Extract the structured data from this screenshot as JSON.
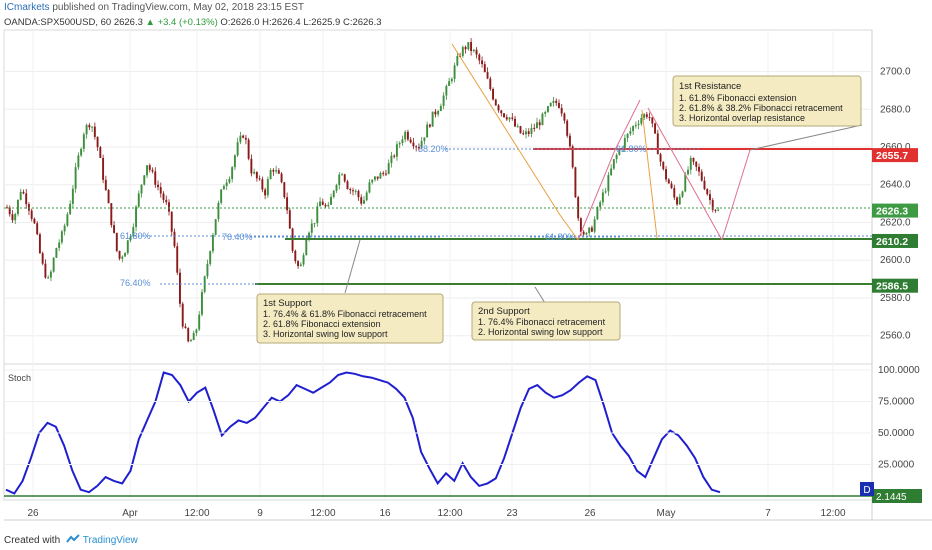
{
  "header": {
    "author": "ICmarkets",
    "published_text": "published on TradingView.com, May 02, 2018 23:15 EST",
    "symbol": "OANDA:SPX500USD, 60",
    "last": "2626.3",
    "change": "▲ +3.4 (+0.13%)",
    "ohlc": "O:2626.0 H:2626.4 L:2625.9 C:2626.3"
  },
  "footer": {
    "created_with": "Created with",
    "brand": "TradingView"
  },
  "indicator": {
    "name": "Stoch",
    "last_value": "2.1445"
  },
  "annotations": {
    "resistance_title": "1st Resistance",
    "resistance_lines": [
      "1. 61.8% Fibonacci extension",
      "2. 61.8% & 38.2% Fibonacci retracement",
      "3. Horizontal overlap resistance"
    ],
    "support1_title": "1st Support",
    "support1_lines": [
      "1. 76.4% & 61.8% Fibonacci retracement",
      "2. 61.8% Fibonacci extension",
      "3. Horizontal swing low support"
    ],
    "support2_title": "2nd Support",
    "support2_lines": [
      "1. 76.4% Fibonacci retracement",
      "2. Horizontal swing low support"
    ],
    "fib_labels": [
      "38.20%",
      "61.80%",
      "61.80%",
      "76.40%",
      "61.80%",
      "76.40%"
    ]
  },
  "chart_data": [
    {
      "type": "candlestick",
      "ylim": [
        2545,
        2722
      ],
      "y_ticks": [
        "2560.0",
        "2580.0",
        "2600.0",
        "2620.0",
        "2640.0",
        "2660.0",
        "2680.0",
        "2700.0"
      ],
      "x_ticks": [
        "26",
        "Apr",
        "12:00",
        "9",
        "12:00",
        "16",
        "12:00",
        "23",
        "26",
        "May",
        "7",
        "12:00"
      ],
      "price_labels": [
        {
          "value": "2655.7",
          "color": "#e03030"
        },
        {
          "value": "2626.3",
          "color": "#3e9b44"
        },
        {
          "value": "2610.2",
          "color": "#2e7d32"
        },
        {
          "value": "2586.5",
          "color": "#2e7d32"
        }
      ],
      "levels": [
        2655.7,
        2610.2,
        2586.5
      ],
      "close_path": [
        2628,
        2622,
        2638,
        2630,
        2618,
        2598,
        2588,
        2606,
        2614,
        2630,
        2650,
        2668,
        2674,
        2660,
        2640,
        2620,
        2600,
        2606,
        2618,
        2636,
        2652,
        2644,
        2636,
        2628,
        2608,
        2570,
        2556,
        2560,
        2582,
        2604,
        2624,
        2640,
        2646,
        2660,
        2668,
        2648,
        2642,
        2636,
        2650,
        2644,
        2632,
        2604,
        2594,
        2615,
        2620,
        2632,
        2626,
        2640,
        2648,
        2638,
        2636,
        2630,
        2640,
        2644,
        2646,
        2652,
        2660,
        2668,
        2664,
        2660,
        2668,
        2676,
        2682,
        2690,
        2700,
        2710,
        2714,
        2710,
        2704,
        2694,
        2684,
        2678,
        2676,
        2670,
        2666,
        2668,
        2672,
        2676,
        2682,
        2684,
        2676,
        2652,
        2620,
        2612,
        2618,
        2630,
        2640,
        2652,
        2660,
        2666,
        2672,
        2676,
        2678,
        2664,
        2648,
        2640,
        2630,
        2640,
        2652,
        2648,
        2640,
        2630,
        2626
      ]
    },
    {
      "type": "line",
      "name": "Stoch",
      "ylim": [
        0,
        100
      ],
      "y_ticks": [
        "25.0000",
        "50.0000",
        "75.0000",
        "100.0000"
      ],
      "values": [
        5,
        2,
        12,
        30,
        50,
        58,
        55,
        40,
        20,
        5,
        3,
        8,
        15,
        12,
        10,
        20,
        45,
        60,
        75,
        98,
        96,
        88,
        75,
        82,
        86,
        68,
        48,
        55,
        60,
        58,
        62,
        70,
        78,
        75,
        80,
        88,
        85,
        82,
        86,
        90,
        96,
        98,
        97,
        95,
        94,
        92,
        90,
        85,
        78,
        62,
        35,
        22,
        10,
        18,
        12,
        26,
        15,
        8,
        10,
        14,
        30,
        50,
        70,
        85,
        88,
        82,
        78,
        80,
        84,
        90,
        95,
        92,
        72,
        50,
        40,
        32,
        20,
        15,
        30,
        45,
        52,
        48,
        40,
        30,
        15,
        5,
        3
      ]
    }
  ]
}
